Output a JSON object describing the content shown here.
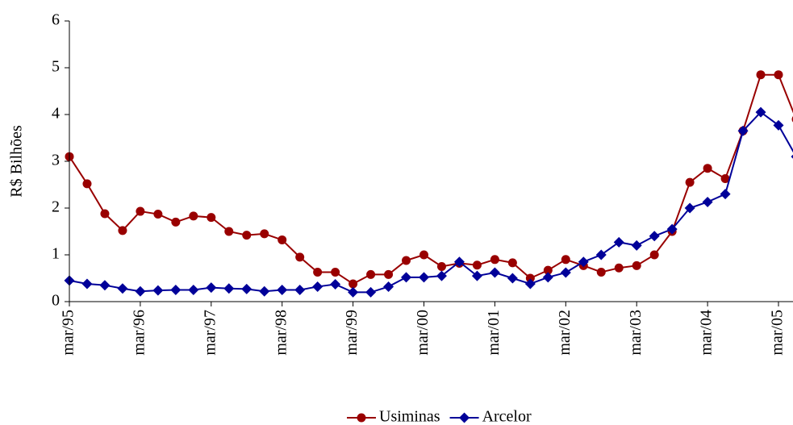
{
  "chart_data": {
    "type": "line",
    "y_label": "R$ Bilhões",
    "categories": [
      "mar/95",
      null,
      null,
      null,
      "mar/96",
      null,
      null,
      null,
      "mar/97",
      null,
      null,
      null,
      "mar/98",
      null,
      null,
      null,
      "mar/99",
      null,
      null,
      null,
      "mar/00",
      null,
      null,
      null,
      "mar/01",
      null,
      null,
      null,
      "mar/02",
      null,
      null,
      null,
      "mar/03",
      null,
      null,
      null,
      "mar/04",
      null,
      null,
      null,
      "mar/05",
      null
    ],
    "series": [
      {
        "name": "Usiminas",
        "color": "#990000",
        "marker": "circle",
        "values": [
          3.1,
          2.52,
          1.88,
          1.52,
          1.93,
          1.87,
          1.7,
          1.83,
          1.8,
          1.5,
          1.42,
          1.45,
          1.32,
          0.95,
          0.63,
          0.63,
          0.38,
          0.58,
          0.58,
          0.88,
          1.0,
          0.75,
          0.82,
          0.78,
          0.9,
          0.83,
          0.5,
          0.67,
          0.9,
          0.77,
          0.63,
          0.72,
          0.77,
          1.0,
          1.5,
          2.55,
          2.85,
          2.63,
          3.65,
          4.85,
          4.85,
          3.9
        ]
      },
      {
        "name": "Arcelor",
        "color": "#000099",
        "marker": "diamond",
        "values": [
          0.45,
          0.38,
          0.35,
          0.28,
          0.22,
          0.24,
          0.25,
          0.25,
          0.3,
          0.28,
          0.27,
          0.22,
          0.25,
          0.25,
          0.32,
          0.37,
          0.2,
          0.2,
          0.32,
          0.52,
          0.52,
          0.55,
          0.85,
          0.55,
          0.62,
          0.5,
          0.38,
          0.52,
          0.62,
          0.85,
          1.0,
          1.27,
          1.2,
          1.4,
          1.55,
          2.0,
          2.13,
          2.3,
          3.65,
          4.05,
          3.77,
          3.1
        ]
      }
    ],
    "ylim": [
      0,
      6
    ],
    "yticks": [
      0,
      1,
      2,
      3,
      4,
      5,
      6
    ],
    "grid": false,
    "legend": "bottom"
  }
}
